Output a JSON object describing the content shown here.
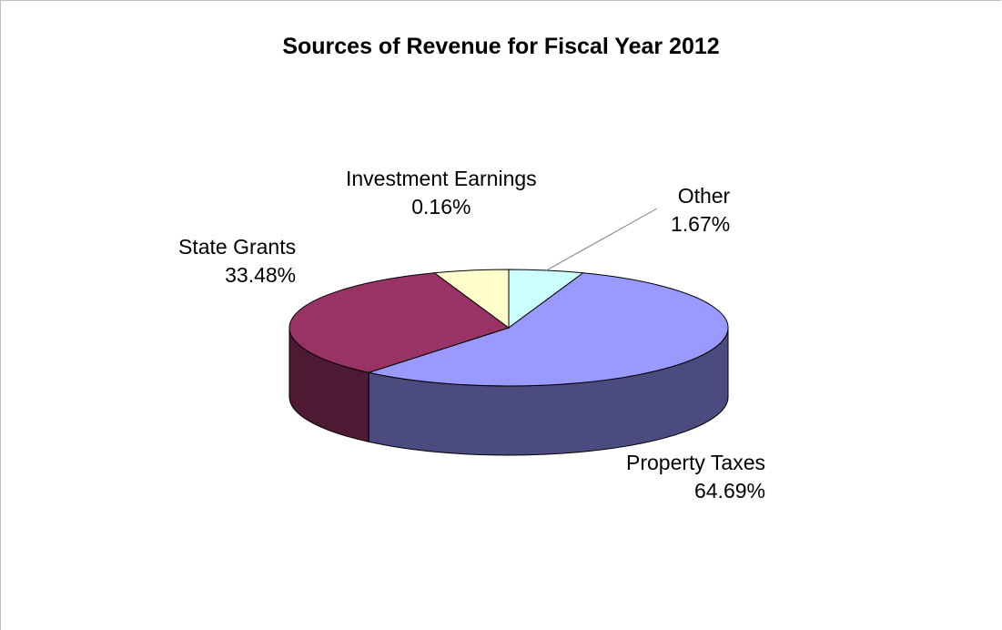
{
  "chart_data": {
    "type": "pie",
    "title": "Sources of Revenue for Fiscal Year 2012",
    "slices": [
      {
        "label": "Property Taxes",
        "value": 64.69,
        "value_label": "64.69%",
        "color": "#9999ff",
        "side_color": "#4b4b7f"
      },
      {
        "label": "State Grants",
        "value": 33.48,
        "value_label": "33.48%",
        "color": "#993366",
        "side_color": "#4d1933"
      },
      {
        "label": "Investment Earnings",
        "value": 0.16,
        "value_label": "0.16%",
        "color": "#ffffcc",
        "side_color": "#7f7f66"
      },
      {
        "label": "Other",
        "value": 1.67,
        "value_label": "1.67%",
        "color": "#ccffff",
        "side_color": "#667f7f"
      }
    ],
    "legend": "none",
    "style": "3d"
  }
}
